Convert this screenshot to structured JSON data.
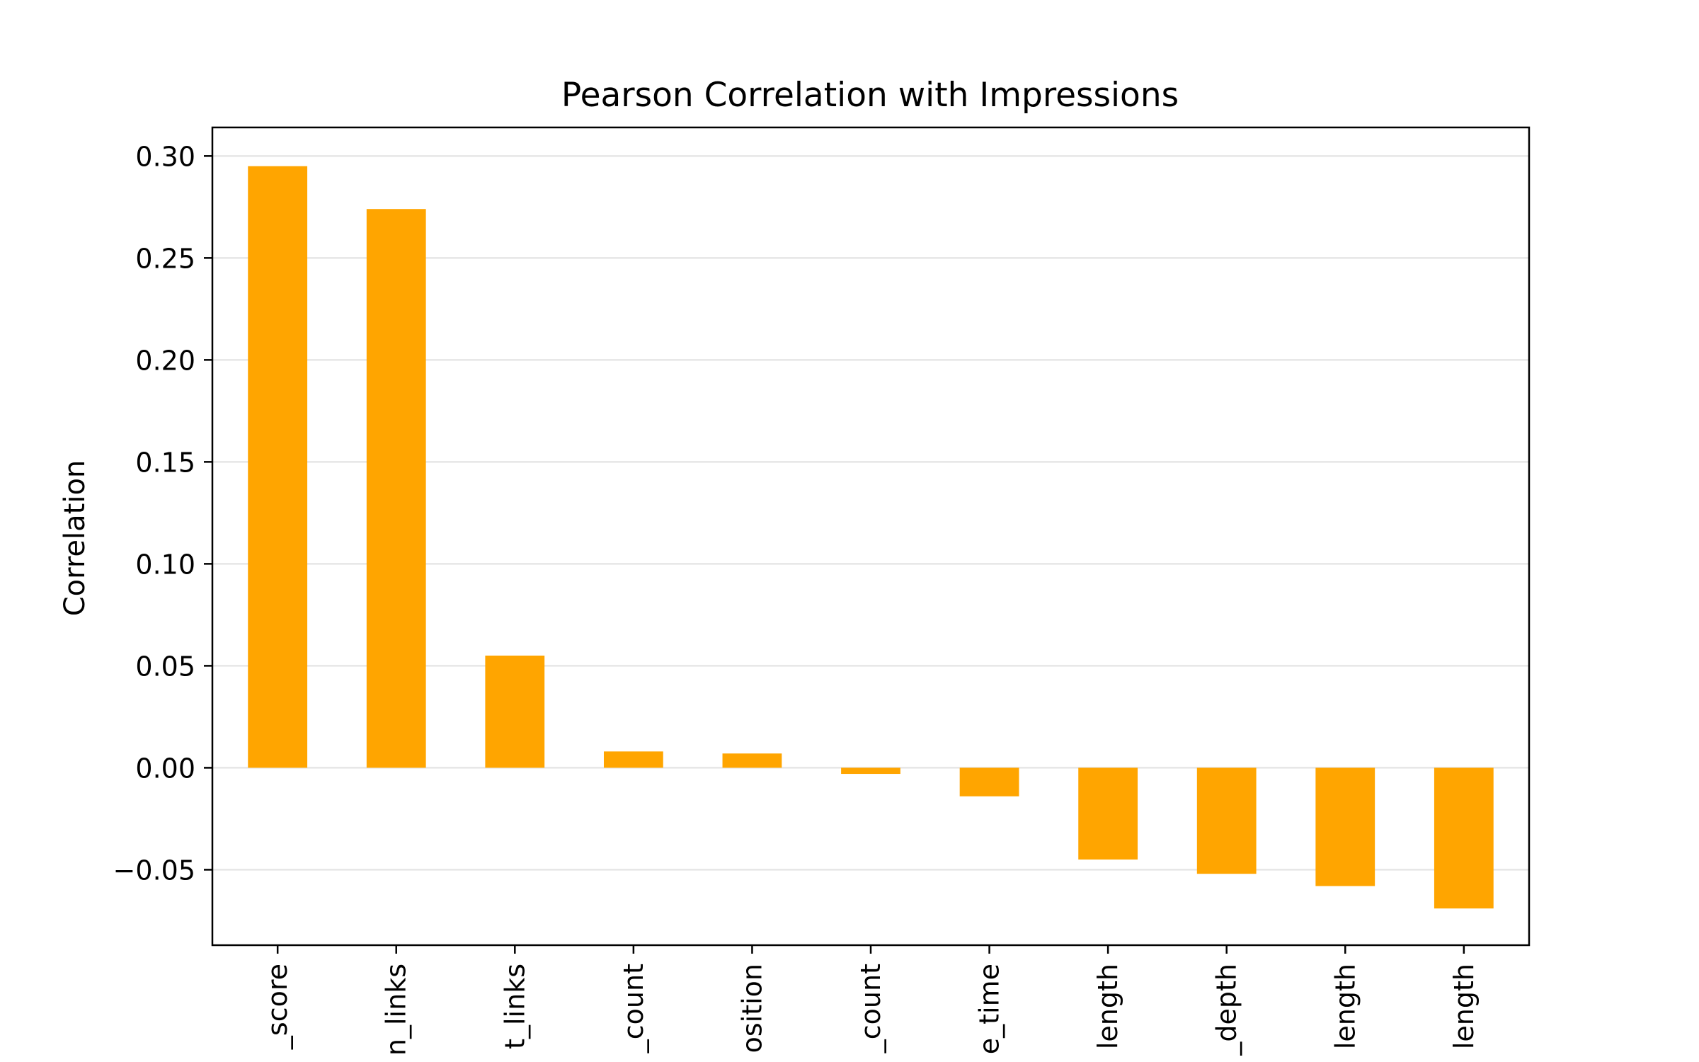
{
  "chart_data": {
    "type": "bar",
    "title": "Pearson Correlation with Impressions",
    "xlabel": "",
    "ylabel": "Correlation",
    "categories": [
      "_score",
      "n_links",
      "t_links",
      "_count",
      "osition",
      "_count",
      "e_time",
      "length",
      "_depth",
      "length",
      "length"
    ],
    "values": [
      0.295,
      0.274,
      0.055,
      0.008,
      0.007,
      -0.003,
      -0.014,
      -0.045,
      -0.052,
      -0.058,
      -0.069
    ],
    "ylim": [
      -0.087,
      0.314
    ],
    "yticks": [
      -0.05,
      0.0,
      0.05,
      0.1,
      0.15,
      0.2,
      0.25,
      0.3
    ],
    "ytick_labels": [
      "−0.05",
      "0.00",
      "0.05",
      "0.10",
      "0.15",
      "0.20",
      "0.25",
      "0.30"
    ],
    "grid": "y",
    "legend": "none",
    "bar_color": "#FFA500",
    "grid_color": "#e6e6e6"
  }
}
